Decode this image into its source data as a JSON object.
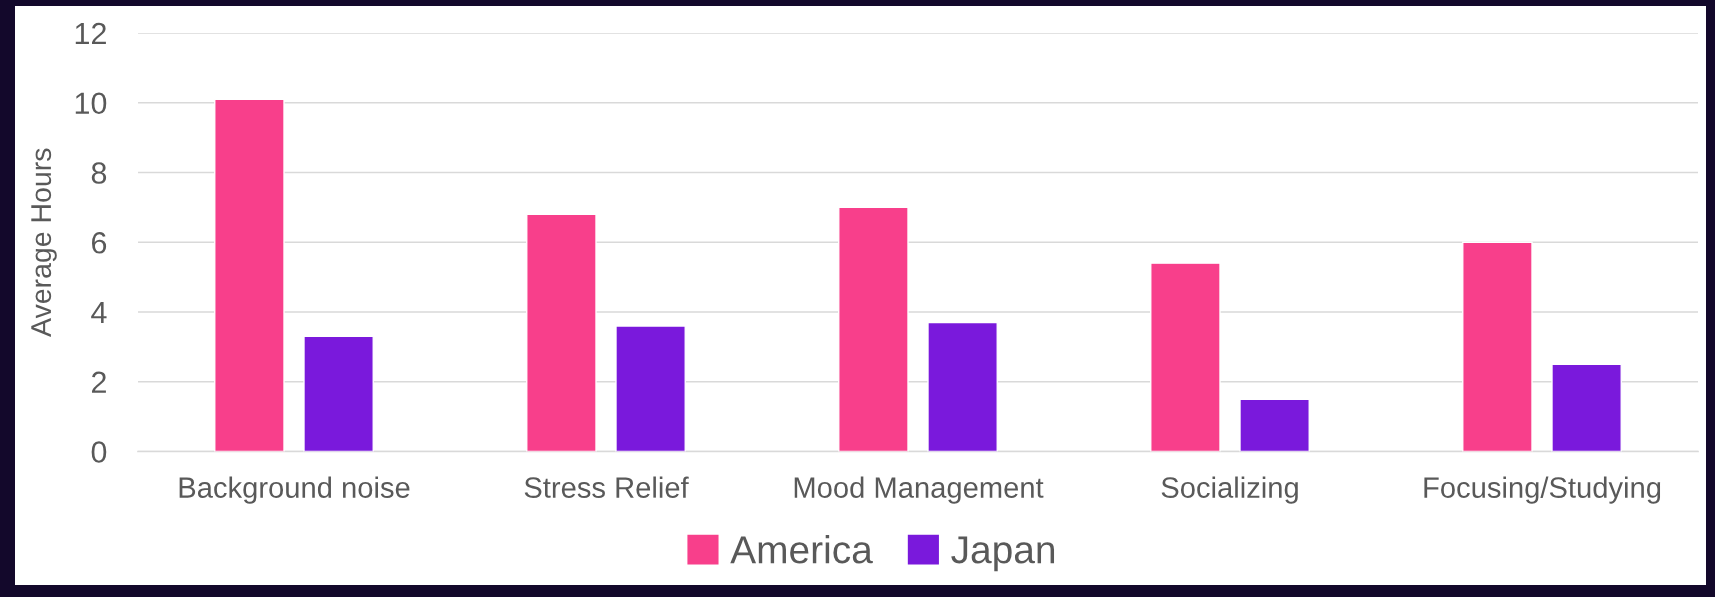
{
  "chart_data": {
    "type": "bar",
    "ylabel": "Average Hours",
    "categories": [
      "Background noise",
      "Stress Relief",
      "Mood Management",
      "Socializing",
      "Focusing/Studying"
    ],
    "series": [
      {
        "name": "America",
        "color": "#f83f8b",
        "values": [
          10.1,
          6.8,
          7.0,
          5.4,
          6.0
        ]
      },
      {
        "name": "Japan",
        "color": "#7a19dc",
        "values": [
          3.3,
          3.6,
          3.7,
          1.5,
          2.5
        ]
      }
    ],
    "ylim": [
      0,
      12
    ],
    "yticks": [
      0,
      2,
      4,
      6,
      8,
      10,
      12
    ],
    "grid": "y",
    "legend": "bottom"
  }
}
